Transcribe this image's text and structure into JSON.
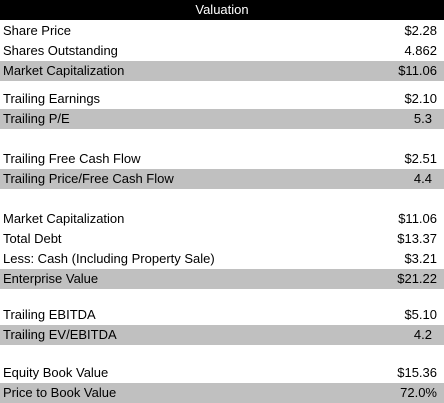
{
  "title": "Valuation",
  "rows": [
    {
      "label": "Share Price",
      "value": "$2.28",
      "highlight": false
    },
    {
      "label": "Shares Outstanding",
      "value": "4.862",
      "highlight": false
    },
    {
      "label": "Market Capitalization",
      "value": "$11.06",
      "highlight": true
    },
    {
      "label": "Trailing Earnings",
      "value": "$2.10",
      "highlight": false
    },
    {
      "label": "Trailing P/E",
      "value": "5.3",
      "highlight": true
    },
    {
      "label": "Trailing Free Cash Flow",
      "value": "$2.51",
      "highlight": false
    },
    {
      "label": "Trailing Price/Free Cash Flow",
      "value": "4.4",
      "highlight": true
    },
    {
      "label": "Market Capitalization",
      "value": "$11.06",
      "highlight": false
    },
    {
      "label": "Total Debt",
      "value": "$13.37",
      "highlight": false
    },
    {
      "label": "Less: Cash (Including Property Sale)",
      "value": "$3.21",
      "highlight": false
    },
    {
      "label": "Enterprise Value",
      "value": "$21.22",
      "highlight": true
    },
    {
      "label": "Trailing EBITDA",
      "value": "$5.10",
      "highlight": false
    },
    {
      "label": "Trailing EV/EBITDA",
      "value": "4.2",
      "highlight": true
    },
    {
      "label": "Equity Book Value",
      "value": "$15.36",
      "highlight": false
    },
    {
      "label": "Price to Book Value",
      "value": "72.0%",
      "highlight": true
    }
  ],
  "colors": {
    "header_bg": "#000000",
    "header_text": "#ffffff",
    "highlight_bg": "#c0c0c0"
  }
}
